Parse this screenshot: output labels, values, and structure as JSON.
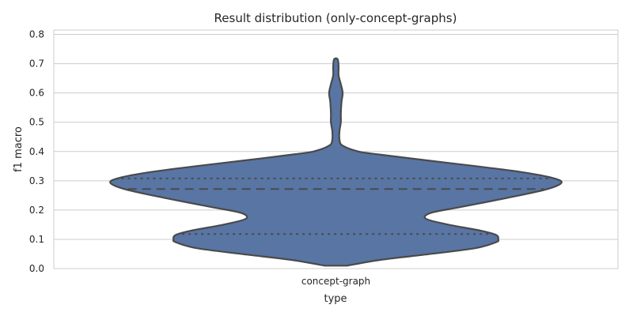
{
  "chart_data": {
    "type": "violin",
    "title": "Result distribution (only-concept-graphs)",
    "xlabel": "type",
    "ylabel": "f1 macro",
    "categories": [
      "concept-graph"
    ],
    "ylim": [
      0.0,
      0.815
    ],
    "yticks": [
      0.0,
      0.1,
      0.2,
      0.3,
      0.4,
      0.5,
      0.6,
      0.7,
      0.8
    ],
    "ytick_labels": [
      "0.0",
      "0.1",
      "0.2",
      "0.3",
      "0.4",
      "0.5",
      "0.6",
      "0.7",
      "0.8"
    ],
    "grid": true,
    "violins": [
      {
        "category": "concept-graph",
        "color": "#5875a4",
        "edge_color": "#4a4a4a",
        "density_profile": [
          [
            0.01,
            0.05
          ],
          [
            0.03,
            0.2
          ],
          [
            0.05,
            0.42
          ],
          [
            0.07,
            0.62
          ],
          [
            0.09,
            0.71
          ],
          [
            0.1,
            0.72
          ],
          [
            0.115,
            0.71
          ],
          [
            0.13,
            0.64
          ],
          [
            0.15,
            0.5
          ],
          [
            0.17,
            0.4
          ],
          [
            0.19,
            0.42
          ],
          [
            0.21,
            0.55
          ],
          [
            0.24,
            0.75
          ],
          [
            0.27,
            0.93
          ],
          [
            0.293,
            1.0
          ],
          [
            0.31,
            0.96
          ],
          [
            0.33,
            0.82
          ],
          [
            0.35,
            0.62
          ],
          [
            0.37,
            0.4
          ],
          [
            0.39,
            0.19
          ],
          [
            0.4,
            0.1
          ],
          [
            0.42,
            0.03
          ],
          [
            0.44,
            0.016
          ],
          [
            0.47,
            0.016
          ],
          [
            0.5,
            0.022
          ],
          [
            0.53,
            0.022
          ],
          [
            0.57,
            0.025
          ],
          [
            0.6,
            0.03
          ],
          [
            0.63,
            0.022
          ],
          [
            0.66,
            0.012
          ],
          [
            0.69,
            0.012
          ],
          [
            0.715,
            0.008
          ]
        ],
        "quartiles": {
          "q1": 0.118,
          "median": 0.272,
          "q3": 0.308
        }
      }
    ]
  }
}
